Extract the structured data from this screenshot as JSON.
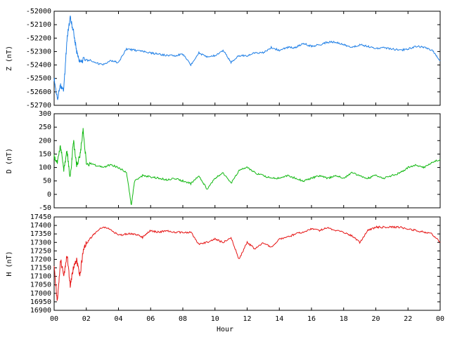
{
  "colors": {
    "z": "#1f7fe6",
    "d": "#12b812",
    "h": "#e61515",
    "axis": "#000000",
    "background": "#ffffff"
  },
  "x_axis": {
    "label": "Hour",
    "ticks": [
      "00",
      "02",
      "04",
      "06",
      "08",
      "10",
      "12",
      "14",
      "16",
      "18",
      "20",
      "22",
      "00"
    ]
  },
  "chart_data": [
    {
      "type": "line",
      "ylabel": "Z (nT)",
      "ylim": [
        -52700,
        -52000
      ],
      "yticks": [
        "-52000",
        "-52100",
        "-52200",
        "-52300",
        "-52400",
        "-52500",
        "-52600",
        "-52700"
      ],
      "grid": false,
      "series": [
        {
          "color": "#1f7fe6",
          "x": [
            0,
            0.2,
            0.4,
            0.6,
            0.8,
            1.0,
            1.2,
            1.4,
            1.6,
            2.0,
            2.5,
            3.0,
            3.5,
            4.0,
            4.5,
            5.0,
            5.5,
            6.0,
            6.5,
            7.0,
            7.5,
            8.0,
            8.5,
            9.0,
            9.5,
            10.0,
            10.5,
            11.0,
            11.5,
            12.0,
            12.5,
            13.0,
            13.5,
            14.0,
            14.5,
            15.0,
            15.5,
            16.0,
            16.5,
            17.0,
            17.5,
            18.0,
            18.5,
            19.0,
            19.5,
            20.0,
            20.5,
            21.0,
            21.5,
            22.0,
            22.5,
            23.0,
            23.5,
            24.0
          ],
          "y": [
            -52500,
            -52660,
            -52550,
            -52580,
            -52200,
            -52050,
            -52150,
            -52300,
            -52380,
            -52350,
            -52380,
            -52400,
            -52370,
            -52380,
            -52280,
            -52290,
            -52300,
            -52310,
            -52320,
            -52330,
            -52330,
            -52320,
            -52400,
            -52310,
            -52340,
            -52330,
            -52290,
            -52380,
            -52330,
            -52330,
            -52310,
            -52310,
            -52270,
            -52290,
            -52270,
            -52270,
            -52240,
            -52260,
            -52250,
            -52230,
            -52230,
            -52250,
            -52270,
            -52250,
            -52260,
            -52280,
            -52270,
            -52280,
            -52290,
            -52280,
            -52260,
            -52270,
            -52290,
            -52370
          ]
        }
      ]
    },
    {
      "type": "line",
      "ylabel": "D (nT)",
      "ylim": [
        -50,
        300
      ],
      "yticks": [
        "300",
        "250",
        "200",
        "150",
        "100",
        "50",
        "0",
        "-50"
      ],
      "grid": false,
      "series": [
        {
          "color": "#12b812",
          "x": [
            0,
            0.2,
            0.4,
            0.6,
            0.8,
            1.0,
            1.2,
            1.4,
            1.6,
            1.8,
            2.0,
            2.5,
            3.0,
            3.5,
            4.0,
            4.5,
            4.8,
            5.0,
            5.5,
            6.0,
            6.5,
            7.0,
            7.5,
            8.0,
            8.5,
            9.0,
            9.5,
            10.0,
            10.5,
            11.0,
            11.5,
            12.0,
            12.5,
            13.0,
            13.5,
            14.0,
            14.5,
            15.0,
            15.5,
            16.0,
            16.5,
            17.0,
            17.5,
            18.0,
            18.5,
            19.0,
            19.5,
            20.0,
            20.5,
            21.0,
            21.5,
            22.0,
            22.5,
            23.0,
            23.5,
            24.0
          ],
          "y": [
            140,
            120,
            180,
            90,
            160,
            60,
            200,
            110,
            140,
            240,
            120,
            110,
            100,
            110,
            100,
            80,
            -40,
            50,
            70,
            65,
            60,
            55,
            60,
            50,
            40,
            70,
            20,
            60,
            80,
            40,
            90,
            100,
            80,
            70,
            60,
            60,
            70,
            60,
            50,
            60,
            70,
            60,
            70,
            60,
            80,
            70,
            60,
            70,
            60,
            70,
            80,
            100,
            110,
            100,
            120,
            130
          ]
        }
      ]
    },
    {
      "type": "line",
      "ylabel": "H (nT)",
      "ylim": [
        16900,
        17450
      ],
      "yticks": [
        "17450",
        "17400",
        "17350",
        "17300",
        "17250",
        "17200",
        "17150",
        "17100",
        "17050",
        "17000",
        "16950",
        "16900"
      ],
      "grid": false,
      "series": [
        {
          "color": "#e61515",
          "x": [
            0,
            0.2,
            0.4,
            0.6,
            0.8,
            1.0,
            1.2,
            1.4,
            1.6,
            1.8,
            2.0,
            2.5,
            3.0,
            3.5,
            4.0,
            4.5,
            5.0,
            5.5,
            6.0,
            6.5,
            7.0,
            7.5,
            8.0,
            8.5,
            9.0,
            9.5,
            10.0,
            10.5,
            11.0,
            11.5,
            12.0,
            12.5,
            13.0,
            13.5,
            14.0,
            14.5,
            15.0,
            15.5,
            16.0,
            16.5,
            17.0,
            17.5,
            18.0,
            18.5,
            19.0,
            19.5,
            20.0,
            20.5,
            21.0,
            21.5,
            22.0,
            22.5,
            23.0,
            23.5,
            24.0
          ],
          "y": [
            17150,
            16950,
            17200,
            17100,
            17230,
            17050,
            17150,
            17200,
            17100,
            17250,
            17300,
            17350,
            17390,
            17380,
            17340,
            17350,
            17350,
            17330,
            17370,
            17360,
            17370,
            17360,
            17360,
            17360,
            17290,
            17300,
            17320,
            17300,
            17330,
            17200,
            17300,
            17260,
            17300,
            17270,
            17320,
            17330,
            17350,
            17360,
            17380,
            17370,
            17390,
            17370,
            17360,
            17340,
            17300,
            17370,
            17390,
            17390,
            17390,
            17390,
            17380,
            17370,
            17360,
            17350,
            17300
          ]
        }
      ]
    }
  ]
}
